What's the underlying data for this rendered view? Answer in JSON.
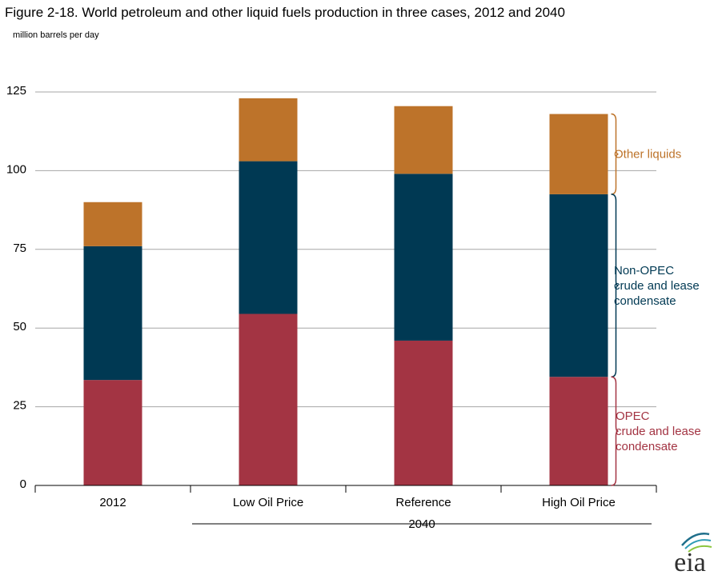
{
  "chart_data": {
    "type": "bar",
    "stacked": true,
    "title": "Figure 2-18. World petroleum and other liquid fuels production in three cases, 2012 and 2040",
    "ylabel": "million barrels per day",
    "ylim": [
      0,
      125
    ],
    "yticks": [
      "0",
      "25",
      "50",
      "75",
      "100",
      "125"
    ],
    "categories": [
      "2012",
      "Low Oil Price",
      "Reference",
      "High Oil Price"
    ],
    "group_label": "2040",
    "grid": true,
    "series": [
      {
        "name": "OPEC crude and lease condensate",
        "color": "#a33443",
        "values": [
          33.5,
          54.5,
          46,
          34.5
        ]
      },
      {
        "name": "Non-OPEC crude and lease condensate",
        "color": "#003953",
        "values": [
          42.5,
          48.5,
          53,
          58
        ]
      },
      {
        "name": "Other liquids",
        "color": "#bd732a",
        "values": [
          14,
          20,
          21.5,
          25.5
        ]
      }
    ],
    "annotations": [
      {
        "series": 2,
        "lines": [
          "Other liquids"
        ],
        "color": "#bd732a"
      },
      {
        "series": 1,
        "lines": [
          "Non-OPEC",
          "crude and lease",
          "condensate"
        ],
        "color": "#003953"
      },
      {
        "series": 0,
        "lines": [
          "OPEC",
          "crude and lease",
          "condensate"
        ],
        "color": "#a33443"
      }
    ]
  },
  "logo_text": "eia"
}
